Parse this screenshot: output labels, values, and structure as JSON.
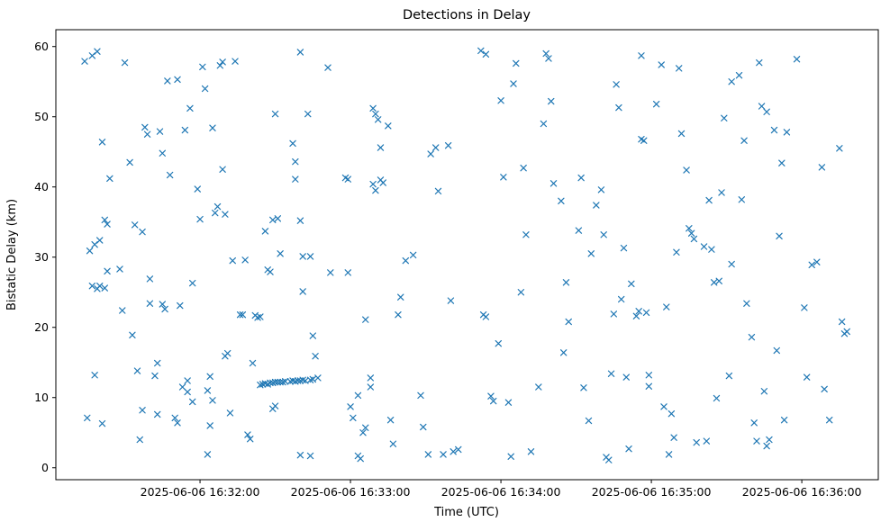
{
  "figure": {
    "title": "Detections in Delay",
    "xlabel": "Time (UTC)",
    "ylabel": "Bistatic Delay (km)"
  },
  "chart_data": {
    "type": "scatter",
    "title": "Detections in Delay",
    "xlabel": "Time (UTC)",
    "ylabel": "Bistatic Delay (km)",
    "marker": "x",
    "marker_color": "#1f77b4",
    "grid": false,
    "legend": "none",
    "x_unit": "seconds_since_2025-06-06T16:31:00Z",
    "xlim": [
      2.5,
      330.5
    ],
    "ylim": [
      -1.7,
      62.4
    ],
    "x_ticks": [
      {
        "value": 60,
        "label": "2025-06-06 16:32:00"
      },
      {
        "value": 120,
        "label": "2025-06-06 16:33:00"
      },
      {
        "value": 180,
        "label": "2025-06-06 16:34:00"
      },
      {
        "value": 240,
        "label": "2025-06-06 16:35:00"
      },
      {
        "value": 300,
        "label": "2025-06-06 16:36:00"
      }
    ],
    "y_ticks": [
      0,
      10,
      20,
      30,
      40,
      50,
      60
    ],
    "points": [
      [
        14,
        57.9
      ],
      [
        17,
        58.7
      ],
      [
        19,
        59.3
      ],
      [
        15,
        7.1
      ],
      [
        21,
        6.3
      ],
      [
        16,
        30.9
      ],
      [
        18,
        31.8
      ],
      [
        20,
        32.4
      ],
      [
        17,
        25.9
      ],
      [
        19,
        25.5
      ],
      [
        20,
        25.9
      ],
      [
        22,
        25.6
      ],
      [
        18,
        13.2
      ],
      [
        21,
        46.4
      ],
      [
        22,
        35.3
      ],
      [
        23,
        34.7
      ],
      [
        23,
        28.0
      ],
      [
        24,
        41.2
      ],
      [
        30,
        57.7
      ],
      [
        29,
        22.4
      ],
      [
        28,
        28.3
      ],
      [
        32,
        43.5
      ],
      [
        33,
        18.9
      ],
      [
        34,
        34.6
      ],
      [
        35,
        13.8
      ],
      [
        36,
        4.0
      ],
      [
        37,
        8.2
      ],
      [
        38,
        48.5
      ],
      [
        39,
        47.5
      ],
      [
        37,
        33.6
      ],
      [
        40,
        23.4
      ],
      [
        40,
        26.9
      ],
      [
        43,
        7.6
      ],
      [
        42,
        13.1
      ],
      [
        43,
        14.9
      ],
      [
        44,
        47.9
      ],
      [
        45,
        44.8
      ],
      [
        45,
        23.3
      ],
      [
        46,
        22.6
      ],
      [
        47,
        55.1
      ],
      [
        51,
        55.3
      ],
      [
        48,
        41.7
      ],
      [
        50,
        7.1
      ],
      [
        51,
        6.4
      ],
      [
        52,
        23.1
      ],
      [
        53,
        11.5
      ],
      [
        55,
        10.8
      ],
      [
        54,
        48.1
      ],
      [
        56,
        51.2
      ],
      [
        57,
        26.3
      ],
      [
        57,
        9.4
      ],
      [
        55,
        12.4
      ],
      [
        59,
        39.7
      ],
      [
        60,
        35.4
      ],
      [
        61,
        57.1
      ],
      [
        62,
        54.0
      ],
      [
        63,
        11.0
      ],
      [
        64,
        13.0
      ],
      [
        65,
        9.6
      ],
      [
        64,
        6.0
      ],
      [
        63,
        1.9
      ],
      [
        65,
        48.4
      ],
      [
        66,
        36.3
      ],
      [
        67,
        37.2
      ],
      [
        68,
        57.3
      ],
      [
        69,
        57.8
      ],
      [
        69,
        42.5
      ],
      [
        70,
        36.1
      ],
      [
        70,
        15.9
      ],
      [
        71,
        16.3
      ],
      [
        72,
        7.8
      ],
      [
        73,
        29.5
      ],
      [
        74,
        57.9
      ],
      [
        76,
        21.8
      ],
      [
        77,
        21.8
      ],
      [
        78,
        29.6
      ],
      [
        79,
        4.7
      ],
      [
        80,
        4.1
      ],
      [
        81,
        14.9
      ],
      [
        82,
        21.7
      ],
      [
        83,
        21.4
      ],
      [
        84,
        21.5
      ],
      [
        86,
        33.7
      ],
      [
        87,
        28.2
      ],
      [
        88,
        27.9
      ],
      [
        89,
        8.4
      ],
      [
        90,
        8.8
      ],
      [
        89,
        35.3
      ],
      [
        91,
        35.5
      ],
      [
        90,
        50.4
      ],
      [
        92,
        30.5
      ],
      [
        97,
        46.2
      ],
      [
        98,
        43.6
      ],
      [
        98,
        41.1
      ],
      [
        100,
        35.2
      ],
      [
        101,
        30.1
      ],
      [
        101,
        25.1
      ],
      [
        100,
        1.8
      ],
      [
        100,
        59.2
      ],
      [
        103,
        50.4
      ],
      [
        104,
        30.1
      ],
      [
        105,
        18.8
      ],
      [
        106,
        15.9
      ],
      [
        104,
        1.7
      ],
      [
        84,
        11.8
      ],
      [
        85,
        11.9
      ],
      [
        86,
        12.0
      ],
      [
        87,
        11.9
      ],
      [
        88,
        12.1
      ],
      [
        89,
        12.1
      ],
      [
        90,
        12.2
      ],
      [
        91,
        12.2
      ],
      [
        92,
        12.2
      ],
      [
        93,
        12.2
      ],
      [
        94,
        12.3
      ],
      [
        96,
        12.3
      ],
      [
        97,
        12.4
      ],
      [
        98,
        12.3
      ],
      [
        99,
        12.4
      ],
      [
        100,
        12.4
      ],
      [
        101,
        12.5
      ],
      [
        102,
        12.4
      ],
      [
        104,
        12.5
      ],
      [
        105,
        12.6
      ],
      [
        107,
        12.8
      ],
      [
        111,
        57.0
      ],
      [
        112,
        27.8
      ],
      [
        119,
        27.8
      ],
      [
        118,
        41.3
      ],
      [
        119,
        41.1
      ],
      [
        120,
        8.7
      ],
      [
        121,
        7.1
      ],
      [
        123,
        10.3
      ],
      [
        123,
        1.7
      ],
      [
        124,
        1.3
      ],
      [
        125,
        5.0
      ],
      [
        126,
        5.7
      ],
      [
        126,
        21.1
      ],
      [
        128,
        11.5
      ],
      [
        128,
        12.8
      ],
      [
        129,
        51.2
      ],
      [
        130,
        50.4
      ],
      [
        131,
        49.6
      ],
      [
        129,
        40.4
      ],
      [
        130,
        39.5
      ],
      [
        132,
        45.6
      ],
      [
        132,
        41.0
      ],
      [
        133,
        40.6
      ],
      [
        135,
        48.7
      ],
      [
        136,
        6.8
      ],
      [
        137,
        3.4
      ],
      [
        139,
        21.8
      ],
      [
        140,
        24.3
      ],
      [
        142,
        29.5
      ],
      [
        145,
        30.3
      ],
      [
        148,
        10.3
      ],
      [
        149,
        5.8
      ],
      [
        151,
        1.9
      ],
      [
        152,
        44.7
      ],
      [
        154,
        45.6
      ],
      [
        155,
        39.4
      ],
      [
        157,
        1.9
      ],
      [
        159,
        45.9
      ],
      [
        160,
        23.8
      ],
      [
        161,
        2.3
      ],
      [
        163,
        2.6
      ],
      [
        172,
        59.4
      ],
      [
        174,
        58.9
      ],
      [
        173,
        21.8
      ],
      [
        174,
        21.5
      ],
      [
        176,
        10.2
      ],
      [
        177,
        9.5
      ],
      [
        179,
        17.7
      ],
      [
        180,
        52.3
      ],
      [
        181,
        41.4
      ],
      [
        183,
        9.3
      ],
      [
        184,
        1.6
      ],
      [
        185,
        54.7
      ],
      [
        186,
        57.6
      ],
      [
        188,
        25.0
      ],
      [
        189,
        42.7
      ],
      [
        190,
        33.2
      ],
      [
        192,
        2.3
      ],
      [
        195,
        11.5
      ],
      [
        198,
        59.0
      ],
      [
        199,
        58.3
      ],
      [
        197,
        49.0
      ],
      [
        200,
        52.2
      ],
      [
        201,
        40.5
      ],
      [
        204,
        38.0
      ],
      [
        205,
        16.4
      ],
      [
        206,
        26.4
      ],
      [
        207,
        20.8
      ],
      [
        211,
        33.8
      ],
      [
        212,
        41.3
      ],
      [
        213,
        11.4
      ],
      [
        215,
        6.7
      ],
      [
        216,
        30.5
      ],
      [
        218,
        37.4
      ],
      [
        220,
        39.6
      ],
      [
        221,
        33.2
      ],
      [
        222,
        1.5
      ],
      [
        223,
        1.1
      ],
      [
        224,
        13.4
      ],
      [
        225,
        21.9
      ],
      [
        226,
        54.6
      ],
      [
        227,
        51.3
      ],
      [
        228,
        24.0
      ],
      [
        229,
        31.3
      ],
      [
        230,
        12.9
      ],
      [
        231,
        2.7
      ],
      [
        232,
        26.2
      ],
      [
        234,
        21.6
      ],
      [
        235,
        22.3
      ],
      [
        236,
        58.7
      ],
      [
        236,
        46.8
      ],
      [
        237,
        46.6
      ],
      [
        238,
        22.1
      ],
      [
        239,
        11.6
      ],
      [
        239,
        13.2
      ],
      [
        242,
        51.8
      ],
      [
        244,
        57.4
      ],
      [
        245,
        8.7
      ],
      [
        246,
        22.9
      ],
      [
        247,
        1.9
      ],
      [
        248,
        7.7
      ],
      [
        249,
        4.3
      ],
      [
        250,
        30.7
      ],
      [
        251,
        56.9
      ],
      [
        252,
        47.6
      ],
      [
        254,
        42.4
      ],
      [
        255,
        34.1
      ],
      [
        256,
        33.4
      ],
      [
        257,
        32.6
      ],
      [
        258,
        3.6
      ],
      [
        261,
        31.5
      ],
      [
        262,
        3.8
      ],
      [
        263,
        38.1
      ],
      [
        264,
        31.1
      ],
      [
        265,
        26.4
      ],
      [
        266,
        9.9
      ],
      [
        267,
        26.6
      ],
      [
        268,
        39.2
      ],
      [
        269,
        49.8
      ],
      [
        271,
        13.1
      ],
      [
        272,
        55.0
      ],
      [
        272,
        29.0
      ],
      [
        275,
        55.9
      ],
      [
        276,
        38.2
      ],
      [
        277,
        46.6
      ],
      [
        278,
        23.4
      ],
      [
        280,
        18.6
      ],
      [
        281,
        6.4
      ],
      [
        282,
        3.8
      ],
      [
        283,
        57.7
      ],
      [
        284,
        51.5
      ],
      [
        285,
        10.9
      ],
      [
        286,
        50.7
      ],
      [
        286,
        3.1
      ],
      [
        287,
        4.0
      ],
      [
        289,
        48.1
      ],
      [
        290,
        16.7
      ],
      [
        291,
        33.0
      ],
      [
        292,
        43.4
      ],
      [
        293,
        6.8
      ],
      [
        294,
        47.8
      ],
      [
        298,
        58.2
      ],
      [
        301,
        22.8
      ],
      [
        302,
        12.9
      ],
      [
        304,
        28.9
      ],
      [
        306,
        29.3
      ],
      [
        308,
        42.8
      ],
      [
        309,
        11.2
      ],
      [
        311,
        6.8
      ],
      [
        315,
        45.5
      ],
      [
        316,
        20.8
      ],
      [
        317,
        19.1
      ],
      [
        318,
        19.4
      ]
    ]
  }
}
